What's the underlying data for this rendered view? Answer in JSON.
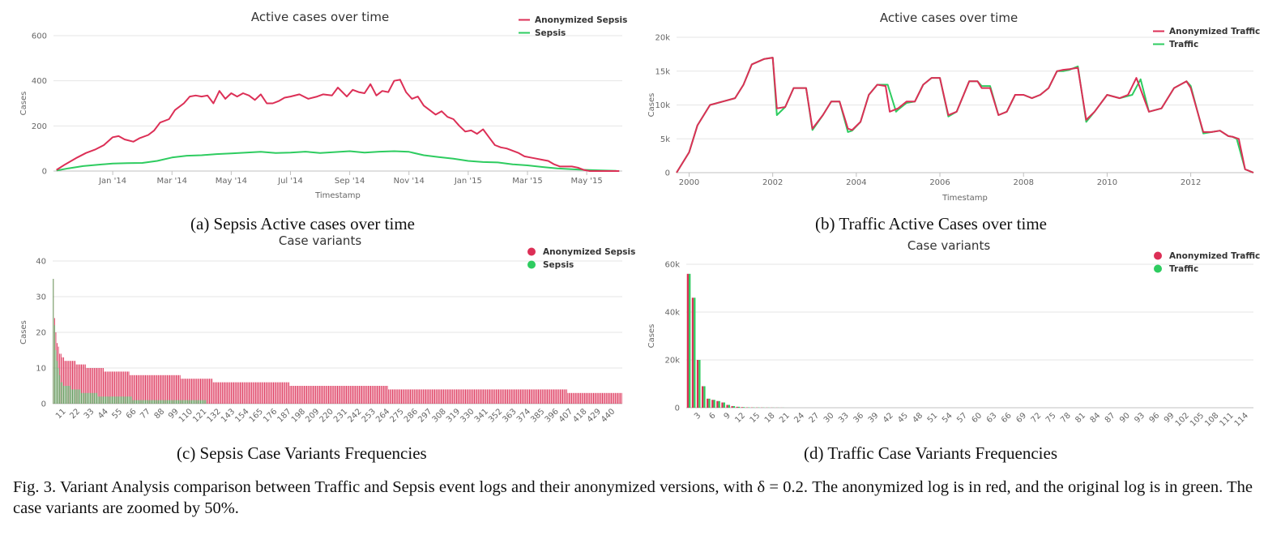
{
  "colors": {
    "anonymized": "#dc2f56",
    "original": "#2ecc60"
  },
  "figure_caption": "Fig. 3.  Variant Analysis comparison between Traffic and Sepsis event logs and their anonymized versions, with δ = 0.2. The anonymized log is in red, and the original log is in green. The case variants are zoomed by 50%.",
  "panels": {
    "a": {
      "caption": "(a) Sepsis Active cases over time"
    },
    "b": {
      "caption": "(b) Traffic Active Cases over time"
    },
    "c": {
      "caption": "(c) Sepsis Case Variants Frequencies"
    },
    "d": {
      "caption": "(d) Traffic Case Variants Frequencies"
    }
  },
  "chart_data": [
    {
      "id": "a",
      "type": "line",
      "title": "Active cases over time",
      "xlabel": "Timestamp",
      "ylabel": "Cases",
      "ylim": [
        0,
        600
      ],
      "yticks": [
        "0",
        "200",
        "400",
        "600"
      ],
      "xlim": [
        0,
        19.2
      ],
      "xticks": [
        {
          "v": 2,
          "label": "Jan '14"
        },
        {
          "v": 4,
          "label": "Mar '14"
        },
        {
          "v": 6,
          "label": "May '14"
        },
        {
          "v": 8,
          "label": "Jul '14"
        },
        {
          "v": 10,
          "label": "Sep '14"
        },
        {
          "v": 12,
          "label": "Nov '14"
        },
        {
          "v": 14,
          "label": "Jan '15"
        },
        {
          "v": 16,
          "label": "Mar '15"
        },
        {
          "v": 18,
          "label": "May '15"
        }
      ],
      "grid": true,
      "legend": "top-right",
      "series": [
        {
          "name": "Anonymized Sepsis",
          "color": "#dc2f56",
          "x": [
            0.1,
            0.4,
            0.8,
            1.1,
            1.4,
            1.7,
            2.0,
            2.2,
            2.4,
            2.7,
            2.9,
            3.2,
            3.4,
            3.6,
            3.9,
            4.1,
            4.4,
            4.6,
            4.8,
            5.0,
            5.2,
            5.4,
            5.6,
            5.8,
            6.0,
            6.2,
            6.4,
            6.6,
            6.8,
            7.0,
            7.2,
            7.4,
            7.6,
            7.8,
            8.0,
            8.3,
            8.6,
            8.9,
            9.1,
            9.4,
            9.6,
            9.9,
            10.1,
            10.3,
            10.5,
            10.7,
            10.9,
            11.1,
            11.3,
            11.5,
            11.7,
            11.9,
            12.1,
            12.3,
            12.5,
            12.7,
            12.9,
            13.1,
            13.3,
            13.5,
            13.7,
            13.9,
            14.1,
            14.3,
            14.5,
            14.7,
            14.9,
            15.1,
            15.3,
            15.5,
            15.7,
            15.9,
            16.1,
            16.3,
            16.5,
            16.7,
            16.9,
            17.1,
            17.3,
            17.5,
            17.7,
            17.9,
            18.1,
            18.3,
            18.5,
            18.7,
            18.9,
            19.1
          ],
          "y": [
            5,
            30,
            60,
            80,
            95,
            115,
            150,
            155,
            140,
            130,
            145,
            160,
            180,
            215,
            230,
            270,
            300,
            330,
            335,
            330,
            335,
            300,
            355,
            320,
            345,
            330,
            345,
            335,
            315,
            340,
            300,
            300,
            310,
            325,
            330,
            340,
            320,
            330,
            340,
            335,
            370,
            330,
            360,
            350,
            345,
            385,
            335,
            355,
            350,
            400,
            405,
            350,
            320,
            330,
            290,
            270,
            250,
            265,
            240,
            230,
            200,
            175,
            180,
            165,
            185,
            150,
            115,
            105,
            100,
            90,
            80,
            65,
            60,
            55,
            50,
            45,
            30,
            20,
            20,
            20,
            15,
            5,
            0,
            0,
            0,
            0,
            0,
            0
          ]
        },
        {
          "name": "Sepsis",
          "color": "#2ecc60",
          "x": [
            0.1,
            0.5,
            1.0,
            1.5,
            2.0,
            2.5,
            3.0,
            3.5,
            4.0,
            4.5,
            5.0,
            5.5,
            6.0,
            6.5,
            7.0,
            7.5,
            8.0,
            8.5,
            9.0,
            9.5,
            10.0,
            10.5,
            11.0,
            11.5,
            12.0,
            12.5,
            13.0,
            13.5,
            14.0,
            14.5,
            15.0,
            15.5,
            16.0,
            16.5,
            17.0,
            17.5,
            18.0,
            18.5,
            19.0
          ],
          "y": [
            2,
            12,
            22,
            28,
            33,
            35,
            36,
            45,
            60,
            68,
            70,
            75,
            78,
            82,
            85,
            80,
            82,
            86,
            80,
            84,
            88,
            82,
            86,
            88,
            85,
            70,
            62,
            55,
            45,
            40,
            38,
            30,
            25,
            18,
            12,
            8,
            5,
            3,
            1
          ]
        }
      ]
    },
    {
      "id": "b",
      "type": "line",
      "title": "Active cases over time",
      "xlabel": "Timestamp",
      "ylabel": "Cases",
      "ylim": [
        0,
        20000
      ],
      "yticks": [
        "0",
        "5k",
        "10k",
        "15k",
        "20k"
      ],
      "xlim": [
        1999.7,
        2013.5
      ],
      "xticks": [
        {
          "v": 2000,
          "label": "2000"
        },
        {
          "v": 2002,
          "label": "2002"
        },
        {
          "v": 2004,
          "label": "2004"
        },
        {
          "v": 2006,
          "label": "2006"
        },
        {
          "v": 2008,
          "label": "2008"
        },
        {
          "v": 2010,
          "label": "2010"
        },
        {
          "v": 2012,
          "label": "2012"
        }
      ],
      "grid": true,
      "legend": "top-right",
      "series": [
        {
          "name": "Anonymized Traffic",
          "color": "#dc2f56",
          "x": [
            1999.7,
            2000.0,
            2000.2,
            2000.5,
            2000.8,
            2001.1,
            2001.3,
            2001.5,
            2001.8,
            2002.0,
            2002.1,
            2002.3,
            2002.5,
            2002.8,
            2002.95,
            2003.2,
            2003.4,
            2003.6,
            2003.8,
            2003.9,
            2004.1,
            2004.3,
            2004.5,
            2004.7,
            2004.8,
            2005.0,
            2005.2,
            2005.4,
            2005.6,
            2005.8,
            2006.0,
            2006.2,
            2006.4,
            2006.7,
            2006.9,
            2007.0,
            2007.2,
            2007.4,
            2007.6,
            2007.8,
            2008.0,
            2008.2,
            2008.4,
            2008.6,
            2008.8,
            2008.95,
            2009.1,
            2009.3,
            2009.5,
            2009.7,
            2010.0,
            2010.3,
            2010.5,
            2010.7,
            2011.0,
            2011.3,
            2011.6,
            2011.9,
            2012.0,
            2012.3,
            2012.5,
            2012.7,
            2012.9,
            2013.0,
            2013.15,
            2013.3,
            2013.5
          ],
          "y": [
            0,
            3000,
            7000,
            10000,
            10500,
            11000,
            13000,
            16000,
            16800,
            17000,
            9500,
            9700,
            12500,
            12500,
            6500,
            8500,
            10500,
            10500,
            6500,
            6300,
            7500,
            11500,
            13000,
            12800,
            9000,
            9500,
            10500,
            10500,
            13000,
            14000,
            14000,
            8500,
            9000,
            13500,
            13500,
            12500,
            12500,
            8500,
            9000,
            11500,
            11500,
            11000,
            11500,
            12500,
            15000,
            15200,
            15300,
            15500,
            7800,
            9000,
            11500,
            11000,
            11500,
            14000,
            9000,
            9500,
            12500,
            13500,
            12500,
            6000,
            6000,
            6200,
            5400,
            5300,
            5000,
            500,
            0
          ]
        },
        {
          "name": "Traffic",
          "color": "#2ecc60",
          "x": [
            1999.7,
            2000.0,
            2000.2,
            2000.5,
            2000.8,
            2001.1,
            2001.3,
            2001.5,
            2001.8,
            2002.0,
            2002.1,
            2002.3,
            2002.5,
            2002.8,
            2002.95,
            2003.2,
            2003.4,
            2003.6,
            2003.8,
            2003.9,
            2004.1,
            2004.3,
            2004.5,
            2004.75,
            2004.95,
            2005.0,
            2005.2,
            2005.4,
            2005.6,
            2005.8,
            2006.0,
            2006.2,
            2006.4,
            2006.7,
            2006.9,
            2007.0,
            2007.2,
            2007.4,
            2007.6,
            2007.8,
            2008.0,
            2008.2,
            2008.4,
            2008.6,
            2008.8,
            2008.95,
            2009.1,
            2009.3,
            2009.5,
            2009.7,
            2010.0,
            2010.3,
            2010.6,
            2010.8,
            2011.0,
            2011.3,
            2011.6,
            2011.9,
            2012.0,
            2012.3,
            2012.5,
            2012.7,
            2012.9,
            2013.0,
            2013.1,
            2013.3,
            2013.5
          ],
          "y": [
            0,
            3000,
            7000,
            10000,
            10500,
            11000,
            13000,
            16000,
            16800,
            17000,
            8500,
            9700,
            12500,
            12500,
            6300,
            8500,
            10500,
            10500,
            6000,
            6200,
            7500,
            11500,
            13000,
            13000,
            9000,
            9300,
            10300,
            10500,
            13000,
            14000,
            14000,
            8300,
            9000,
            13500,
            13500,
            12800,
            12800,
            8500,
            9000,
            11500,
            11500,
            11000,
            11500,
            12500,
            15000,
            15000,
            15200,
            15700,
            7500,
            9000,
            11500,
            11000,
            11500,
            13800,
            9000,
            9500,
            12500,
            13500,
            12800,
            5800,
            6000,
            6200,
            5400,
            5300,
            5000,
            500,
            0
          ]
        }
      ]
    },
    {
      "id": "c",
      "type": "bar",
      "title": "Case variants",
      "xlabel": "",
      "ylabel": "Cases",
      "ylim": [
        0,
        40
      ],
      "yticks": [
        "0",
        "10",
        "20",
        "30",
        "40"
      ],
      "categories_count": 445,
      "xticks": [
        "11",
        "22",
        "33",
        "44",
        "55",
        "66",
        "77",
        "88",
        "99",
        "110",
        "121",
        "132",
        "143",
        "154",
        "165",
        "176",
        "187",
        "198",
        "209",
        "220",
        "231",
        "242",
        "253",
        "264",
        "275",
        "286",
        "297",
        "308",
        "319",
        "330",
        "341",
        "352",
        "363",
        "374",
        "385",
        "396",
        "407",
        "418",
        "429",
        "440"
      ],
      "grid": true,
      "legend": "top-right",
      "series": [
        {
          "name": "Anonymized Sepsis",
          "color": "#dc2f56",
          "segments": [
            [
              1,
              1,
              35
            ],
            [
              2,
              2,
              24
            ],
            [
              3,
              3,
              20
            ],
            [
              4,
              4,
              17
            ],
            [
              5,
              5,
              16
            ],
            [
              6,
              7,
              14
            ],
            [
              8,
              9,
              13
            ],
            [
              10,
              18,
              12
            ],
            [
              19,
              26,
              11
            ],
            [
              27,
              40,
              10
            ],
            [
              41,
              60,
              9
            ],
            [
              61,
              100,
              8
            ],
            [
              101,
              125,
              7
            ],
            [
              126,
              185,
              6
            ],
            [
              186,
              262,
              5
            ],
            [
              263,
              402,
              4
            ],
            [
              403,
              445,
              3
            ]
          ]
        },
        {
          "name": "Sepsis",
          "color": "#2ecc60",
          "segments": [
            [
              1,
              1,
              35
            ],
            [
              2,
              2,
              22
            ],
            [
              3,
              3,
              15
            ],
            [
              4,
              4,
              12
            ],
            [
              5,
              5,
              10
            ],
            [
              6,
              6,
              8
            ],
            [
              7,
              8,
              6
            ],
            [
              9,
              14,
              5
            ],
            [
              15,
              22,
              4
            ],
            [
              23,
              35,
              3
            ],
            [
              36,
              50,
              2
            ],
            [
              51,
              62,
              2
            ],
            [
              63,
              120,
              1
            ]
          ]
        }
      ]
    },
    {
      "id": "d",
      "type": "bar",
      "title": "Case variants",
      "xlabel": "",
      "ylabel": "Cases",
      "ylim": [
        0,
        60000
      ],
      "yticks": [
        "0",
        "20k",
        "40k",
        "60k"
      ],
      "categories_count": 115,
      "xticks": [
        "3",
        "6",
        "9",
        "12",
        "15",
        "18",
        "21",
        "24",
        "27",
        "30",
        "33",
        "36",
        "39",
        "42",
        "45",
        "48",
        "51",
        "54",
        "57",
        "60",
        "63",
        "66",
        "69",
        "72",
        "75",
        "78",
        "81",
        "84",
        "87",
        "90",
        "93",
        "96",
        "99",
        "102",
        "105",
        "108",
        "111",
        "114"
      ],
      "grid": true,
      "legend": "top-right",
      "series": [
        {
          "name": "Anonymized Traffic",
          "color": "#dc2f56",
          "values": [
            56000,
            46000,
            20000,
            9000,
            3800,
            3300,
            2800,
            2200,
            1200,
            700,
            400,
            250,
            150,
            120,
            100,
            80,
            60,
            50,
            40,
            30
          ]
        },
        {
          "name": "Traffic",
          "color": "#2ecc60",
          "values": [
            56000,
            46000,
            20000,
            9000,
            3800,
            3300,
            2800,
            2200,
            1200,
            700,
            400,
            250,
            150,
            120,
            100,
            80,
            60,
            50,
            40,
            30
          ]
        }
      ]
    }
  ]
}
